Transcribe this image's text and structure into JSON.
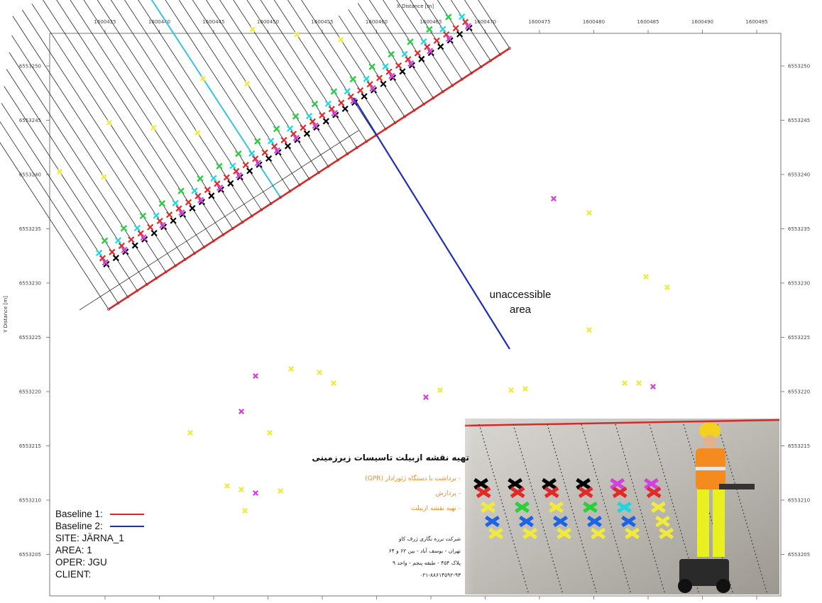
{
  "map": {
    "x_axis_title": "X Distance [m]",
    "y_axis_title": "Y Distance [m]",
    "x_ticks": [
      "1600435",
      "1600440",
      "1600445",
      "1600450",
      "1600455",
      "1600460",
      "1600465",
      "1600470",
      "1600475",
      "1600480",
      "1600485",
      "1600490",
      "1600495"
    ],
    "y_ticks": [
      "6553250",
      "6553245",
      "6553240",
      "6553235",
      "6553230",
      "6553225",
      "6553220",
      "6553215",
      "6553210",
      "6553205"
    ],
    "annotation_line1": "unaccessible",
    "annotation_line2": "area",
    "colors": {
      "baseline1": "#d42a2a",
      "baseline2": "#1f2fb5",
      "profile": "#222222",
      "cyan_profile": "#37c3e0"
    },
    "marker_colors": [
      "#000000",
      "#e02a2a",
      "#1f63e0",
      "#d43fe0",
      "#1fd6e0",
      "#2ccf3a",
      "#f2ea3a"
    ]
  },
  "legend": {
    "baseline1": "Baseline 1:",
    "baseline2": "Baseline 2:",
    "site": "SITE: JÄRNA_1",
    "area": "AREA: 1",
    "oper": "OPER: JGU",
    "client": "CLIENT:"
  },
  "photo": {
    "title": "تهیه نقشه ازبیلت تاسیسات زیرزمینی",
    "bullet1": "- برداشت با دستگاه ژئورادار (GPR)",
    "bullet2": "- پردازش",
    "bullet3": "- تهیه نقشه ازبیلت",
    "company1": "شرکت نرزه نگاری ژرف کاو",
    "company2": "تهران - یوسف آباد - بین ۶۲ و ۶۴",
    "company3": "پلاک ۴۵۴ - طبقه پنجم - واحد ۹",
    "company4": "۰۲۱-۸۸۶۱۴۵۹۲-۹۳"
  }
}
